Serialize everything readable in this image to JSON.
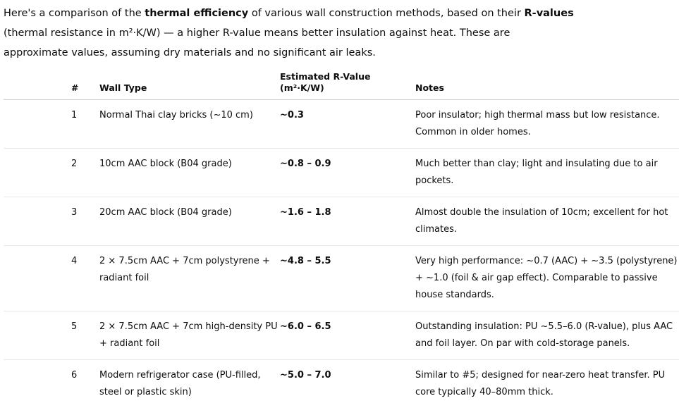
{
  "intro": {
    "line1_prefix": "Here's a comparison of the ",
    "line1_bold1": "thermal efficiency",
    "line1_mid": " of various wall construction methods, based on their ",
    "line1_bold2": "R-values",
    "line2": "(thermal resistance in m²·K/W) — a higher R-value means better insulation against heat. These are",
    "line3": "approximate values, assuming dry materials and no significant air leaks."
  },
  "table": {
    "headers": {
      "num": "#",
      "type": "Wall Type",
      "value_line1": "Estimated R-Value",
      "value_line2": "(m²·K/W)",
      "notes": "Notes"
    },
    "rows": [
      {
        "num": "1",
        "type": "Normal Thai clay bricks (~10 cm)",
        "value": "~0.3",
        "notes": "Poor insulator; high thermal mass but low resistance. Common in older homes."
      },
      {
        "num": "2",
        "type": "10cm AAC block (B04 grade)",
        "value": "~0.8 – 0.9",
        "notes": "Much better than clay; light and insulating due to air pockets."
      },
      {
        "num": "3",
        "type": "20cm AAC block (B04 grade)",
        "value": "~1.6 – 1.8",
        "notes": "Almost double the insulation of 10cm; excellent for hot climates."
      },
      {
        "num": "4",
        "type": "2 × 7.5cm AAC + 7cm polystyrene + radiant foil",
        "value": "~4.8 – 5.5",
        "notes": "Very high performance: ~0.7 (AAC) + ~3.5 (polystyrene) + ~1.0 (foil & air gap effect). Comparable to passive house standards."
      },
      {
        "num": "5",
        "type": "2 × 7.5cm AAC + 7cm high-density PU + radiant foil",
        "value": "~6.0 – 6.5",
        "notes": "Outstanding insulation: PU ~5.5–6.0 (R-value), plus AAC and foil layer. On par with cold-storage panels."
      },
      {
        "num": "6",
        "type": "Modern refrigerator case (PU-filled, steel or plastic skin)",
        "value": "~5.0 – 7.0",
        "notes": "Similar to #5; designed for near-zero heat transfer. PU core typically 40–80mm thick."
      }
    ]
  }
}
